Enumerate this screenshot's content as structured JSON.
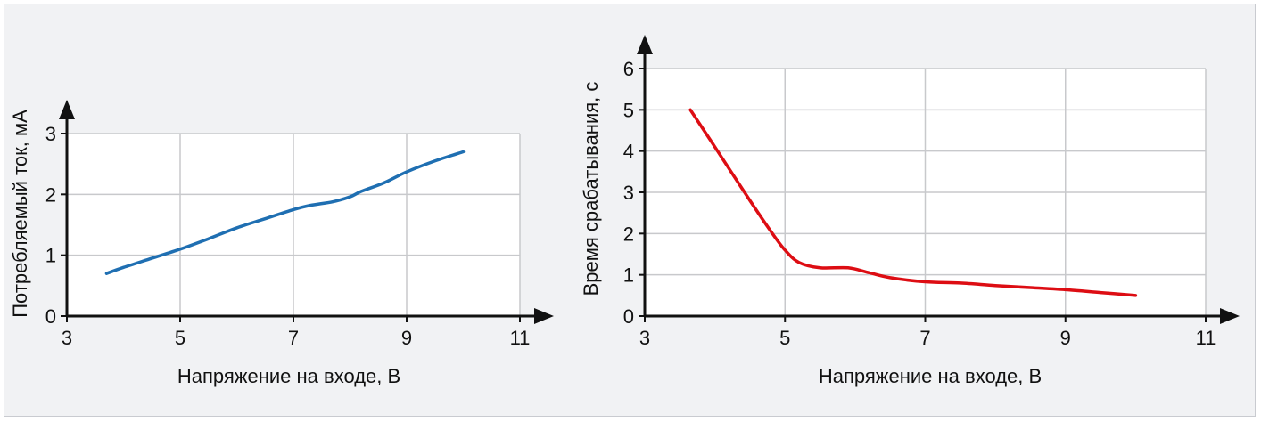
{
  "colors": {
    "left_series": "#1f6fb2",
    "right_series": "#dd0d13",
    "panel_bg": "#ffffff",
    "frame_bg": "#f1f2f4",
    "grid": "#c8c9cc"
  },
  "chart_data": [
    {
      "type": "line",
      "xlabel": "Напряжение на входе, В",
      "ylabel": "Потребляемый ток, мА",
      "xlim": [
        3,
        11
      ],
      "ylim": [
        0,
        3
      ],
      "x_ticks": [
        3,
        5,
        7,
        9,
        11
      ],
      "y_ticks": [
        0,
        1,
        2,
        3
      ],
      "grid": true,
      "series": [
        {
          "x": [
            3.7,
            4.0,
            4.5,
            5.0,
            5.5,
            6.0,
            6.5,
            7.0,
            7.3,
            7.7,
            8.0,
            8.2,
            8.6,
            9.0,
            9.5,
            10.0
          ],
          "y": [
            0.7,
            0.8,
            0.95,
            1.1,
            1.27,
            1.45,
            1.6,
            1.75,
            1.82,
            1.88,
            1.96,
            2.05,
            2.19,
            2.37,
            2.55,
            2.7
          ]
        }
      ]
    },
    {
      "type": "line",
      "xlabel": "Напряжение на входе, В",
      "ylabel": "Время срабатывания, с",
      "xlim": [
        3,
        11
      ],
      "ylim": [
        0,
        6
      ],
      "x_ticks": [
        3,
        5,
        7,
        9,
        11
      ],
      "y_ticks": [
        0,
        1,
        2,
        3,
        4,
        5,
        6
      ],
      "grid": true,
      "series": [
        {
          "x": [
            3.65,
            4.0,
            4.5,
            4.8,
            5.0,
            5.2,
            5.5,
            5.9,
            6.2,
            6.5,
            7.0,
            7.5,
            8.0,
            8.5,
            9.0,
            9.5,
            10.0
          ],
          "y": [
            5.0,
            4.1,
            2.8,
            2.05,
            1.6,
            1.3,
            1.17,
            1.17,
            1.05,
            0.93,
            0.83,
            0.8,
            0.74,
            0.69,
            0.64,
            0.57,
            0.5
          ]
        }
      ]
    }
  ]
}
